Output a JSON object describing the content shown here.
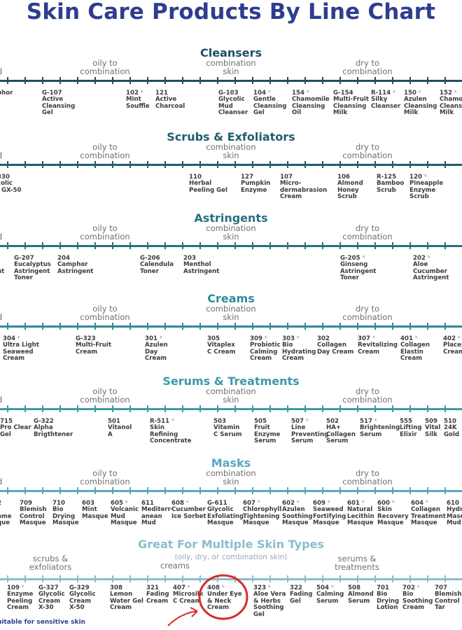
{
  "title": "Skin Care Products By Line Chart",
  "colors": {
    "title": "#2e3d8f",
    "navy": "#1f4e63",
    "teal": "#2a7f8a",
    "light": "#8bbccc"
  },
  "sections": [
    {
      "title": "Cleansers",
      "color": "#1f4e63",
      "zones": [
        "d",
        "oily to\ncombination",
        "combination\nskin",
        "dry to\ncombination"
      ],
      "items": [
        {
          "code": "",
          "star": "",
          "name": "phor"
        },
        {
          "code": "G-107",
          "star": "",
          "name": "Active\nCleansing\nGel"
        },
        {
          "code": "102",
          "star": "*",
          "name": "Mint\nSouffle"
        },
        {
          "code": "121",
          "star": "",
          "name": "Active\nCharcoal"
        },
        {
          "code": "G-103",
          "star": "",
          "name": "Glycolic\nMud\nCleanser"
        },
        {
          "code": "104",
          "star": "*",
          "name": "Gentle\nCleansing\nGel"
        },
        {
          "code": "154",
          "star": "*",
          "name": "Chamomile\nCleansing\nOil"
        },
        {
          "code": "G-154",
          "star": "",
          "name": "Multi-Fruit\nCleansing\nMilk"
        },
        {
          "code": "R-114",
          "star": "*",
          "name": "Silky\nCleanser"
        },
        {
          "code": "150",
          "star": "*",
          "name": "Azulen\nCleansing\nMilk"
        },
        {
          "code": "152",
          "star": "*",
          "name": "Chamo\nCleansi\nMilk"
        }
      ]
    },
    {
      "title": "Scrubs & Exfoliators",
      "color": "#1f5e6e",
      "zones": [
        "d",
        "oily to\ncombination",
        "combination\nskin",
        "dry to\ncombination"
      ],
      "items": [
        {
          "code": "330",
          "star": "",
          "name": "colic\nl GX-50"
        },
        {
          "code": "110",
          "star": "",
          "name": "Herbal\nPeeling Gel"
        },
        {
          "code": "127",
          "star": "",
          "name": "Pumpkin\nEnzyme"
        },
        {
          "code": "107",
          "star": "",
          "name": "Micro-\ndermabrasion\nCream"
        },
        {
          "code": "106",
          "star": "",
          "name": "Almond\nHoney\nScrub"
        },
        {
          "code": "R-125",
          "star": "",
          "name": "Bamboo\nScrub"
        },
        {
          "code": "120",
          "star": "*",
          "name": "Pineapple\nEnzyme\nScrub"
        }
      ]
    },
    {
      "title": "Astringents",
      "color": "#2a6f80",
      "zones": [
        "d",
        "oily to\ncombination",
        "combination\nskin",
        "dry to\ncombination"
      ],
      "items": [
        {
          "code": "",
          "star": "",
          "name": "\n\nnt"
        },
        {
          "code": "G-207",
          "star": "",
          "name": "Eucalyptus\nAstringent\nToner"
        },
        {
          "code": "204",
          "star": "",
          "name": "Camphor\nAstringent"
        },
        {
          "code": "G-206",
          "star": "",
          "name": "Calendula\nToner"
        },
        {
          "code": "203",
          "star": "",
          "name": "Menthol\nAstringent"
        },
        {
          "code": "G-205",
          "star": "*",
          "name": "Ginseng\nAstringent\nToner"
        },
        {
          "code": "202",
          "star": "*",
          "name": "Aloe\nCucumber\nAstringent"
        }
      ]
    },
    {
      "title": "Creams",
      "color": "#2f8a9a",
      "zones": [
        "d",
        "oily to\ncombination",
        "combination\nskin",
        "dry to\ncombination"
      ],
      "items": [
        {
          "code": "304",
          "star": "*",
          "name": "Ultra Light\nSeaweed\nCream"
        },
        {
          "code": "G-323",
          "star": "",
          "name": "Multi-Fruit\nCream"
        },
        {
          "code": "301",
          "star": "*",
          "name": "Azulen\nDay\nCream"
        },
        {
          "code": "305",
          "star": "",
          "name": "Vitaplex\nC Cream"
        },
        {
          "code": "309",
          "star": "*",
          "name": "Probiotic\nCalming\nCream"
        },
        {
          "code": "303",
          "star": "*",
          "name": "Bio\nHydrating\nCream"
        },
        {
          "code": "302",
          "star": "",
          "name": "Collagen\nDay Cream"
        },
        {
          "code": "307",
          "star": "*",
          "name": "Revitalizing\nCream"
        },
        {
          "code": "401",
          "star": "*",
          "name": "Collagen\nElastin\nCream"
        },
        {
          "code": "402",
          "star": "*",
          "name": "Placen\nCream"
        }
      ]
    },
    {
      "title": "Serums & Treatments",
      "color": "#3f98aa",
      "zones": [
        "d",
        "oily to\ncombination",
        "combination\nskin",
        "dry to\ncombination"
      ],
      "items": [
        {
          "code": "715",
          "star": "",
          "name": "Pro Clear\nGel"
        },
        {
          "code": "G-322",
          "star": "",
          "name": "Alpha\nBrigthtener"
        },
        {
          "code": "501",
          "star": "",
          "name": "Vitanol\nA"
        },
        {
          "code": "R-511",
          "star": "*",
          "name": "Skin\nRefining\nConcentrate"
        },
        {
          "code": "503",
          "star": "",
          "name": "Vitamin\nC Serum"
        },
        {
          "code": "505",
          "star": "",
          "name": "Fruit\nEnzyme\nSerum"
        },
        {
          "code": "507",
          "star": "*",
          "name": "Line\nPreventing\nSerum"
        },
        {
          "code": "502",
          "star": "",
          "name": "HA+\nCollagen\nSerum"
        },
        {
          "code": "517",
          "star": "*",
          "name": "Brightening\nSerum"
        },
        {
          "code": "555",
          "star": "",
          "name": "Lifting\nElixir"
        },
        {
          "code": "509",
          "star": "",
          "name": "Vital\nSilk"
        },
        {
          "code": "510",
          "star": "",
          "name": "24K\nGold"
        }
      ]
    },
    {
      "title": "Masks",
      "color": "#5aa8bd",
      "zones": [
        "d",
        "oily to\ncombination",
        "combination\nskin",
        "dry to\ncombination"
      ],
      "items": [
        {
          "code": "2",
          "star": "",
          "name": "\name\nque"
        },
        {
          "code": "709",
          "star": "",
          "name": "Blemish\nControl\nMasque"
        },
        {
          "code": "710",
          "star": "",
          "name": "Bio\nDrying\nMasque"
        },
        {
          "code": "603",
          "star": "",
          "name": "Mint\nMasque"
        },
        {
          "code": "605",
          "star": "*",
          "name": "Volcanic\nMud\nMasque"
        },
        {
          "code": "611",
          "star": "",
          "name": "Mediterr-\nanean\nMud"
        },
        {
          "code": "608",
          "star": "*",
          "name": "Cucumber\nIce Sorbet"
        },
        {
          "code": "G-611",
          "star": "",
          "name": "Glycolic\nExfoliating\nMasque"
        },
        {
          "code": "607",
          "star": "*",
          "name": "Chlorophyll\nTightening\nMasque"
        },
        {
          "code": "602",
          "star": "*",
          "name": "Azulen\nSoothing\nMasque"
        },
        {
          "code": "609",
          "star": "*",
          "name": "Seaweed\nFortifying\nMasque"
        },
        {
          "code": "601",
          "star": "*",
          "name": "Natural\nLecithin\nMasque"
        },
        {
          "code": "600",
          "star": "*",
          "name": "Skin\nRecovery\nMasque"
        },
        {
          "code": "604",
          "star": "*",
          "name": "Collagen\nTreatment\nMasque"
        },
        {
          "code": "610",
          "star": "",
          "name": "Hydr\nMasq\nMud"
        }
      ]
    }
  ],
  "multi": {
    "title": "Great For Multiple Skin Types",
    "subtitle": "(oily, dry, or combination skin)",
    "zones": [
      "scrubs &\nexfoliators",
      "creams",
      "serums &\ntreatments"
    ],
    "items": [
      {
        "code": "109",
        "star": "*",
        "name": "Enzyme\nPeeling\nCream"
      },
      {
        "code": "G-327",
        "star": "",
        "name": "Glycolic\nCream\nX-30"
      },
      {
        "code": "G-329",
        "star": "",
        "name": "Glycolic\nCream\nX-50"
      },
      {
        "code": "308",
        "star": "",
        "name": "Lemon\nWater Gel\nCream"
      },
      {
        "code": "321",
        "star": "",
        "name": "Fading\nCream"
      },
      {
        "code": "407",
        "star": "*",
        "name": "Microsilk\nC Cream"
      },
      {
        "code": "408",
        "star": "*",
        "name": "Under Eye\n& Neck\nCream"
      },
      {
        "code": "323",
        "star": "*",
        "name": "Aloe Vera\n& Herbs\nSoothing\nGel"
      },
      {
        "code": "322",
        "star": "",
        "name": "Fading\nGel"
      },
      {
        "code": "504",
        "star": "*",
        "name": "Calming\nSerum"
      },
      {
        "code": "508",
        "star": "",
        "name": "Almond\nSerum"
      },
      {
        "code": "701",
        "star": "",
        "name": "Bio\nDrying\nLotion"
      },
      {
        "code": "702",
        "star": "*",
        "name": "Bio\nSoothing\nCream"
      },
      {
        "code": "707",
        "star": "",
        "name": "Blemish\nControl\nTar"
      }
    ],
    "note": "uitable for sensitive skin"
  }
}
